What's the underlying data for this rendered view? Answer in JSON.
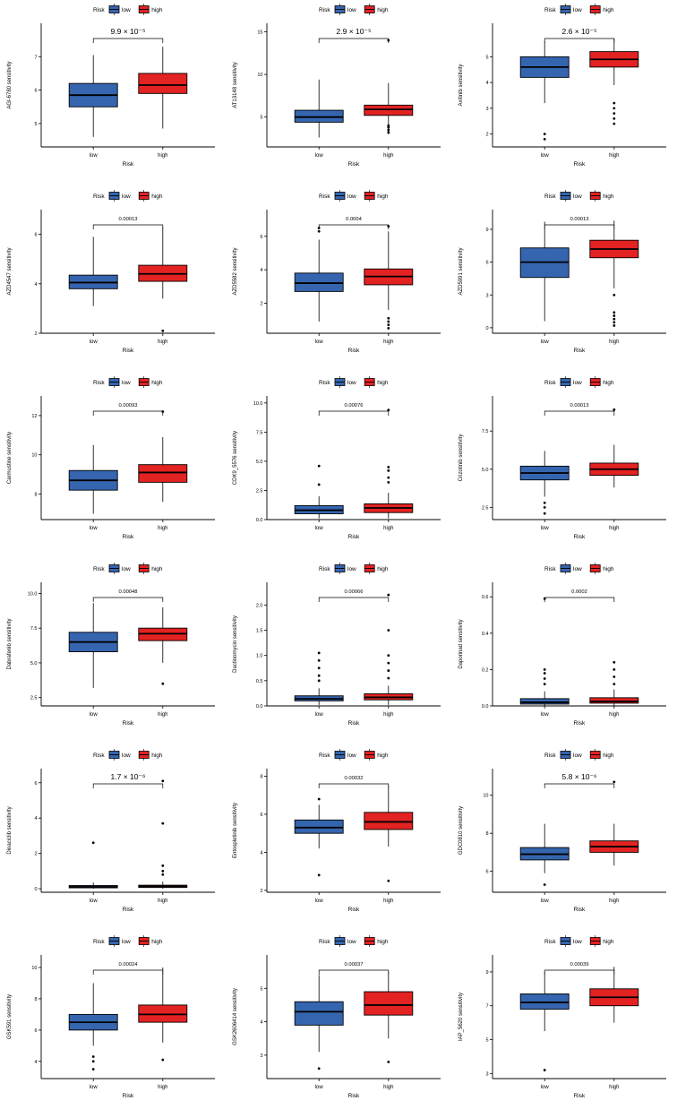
{
  "figure": {
    "type": "boxplot-grid",
    "rows": 6,
    "columns": 3
  },
  "legend": {
    "title": "Risk",
    "items": [
      {
        "label": "low",
        "color": "#3565AF"
      },
      {
        "label": "high",
        "color": "#E32222"
      }
    ]
  },
  "axes": {
    "x_label": "Risk",
    "x_categories": [
      "low",
      "high"
    ]
  },
  "chart_data": [
    {
      "type": "boxplot",
      "ylabel": "AGI-6780 sensitivity",
      "pvalue": "9.9 × 10⁻⁵",
      "pvalue_large": true,
      "ylim": [
        4.3,
        8.0
      ],
      "yticks": [
        5,
        6,
        7
      ],
      "ytick_labels": [
        "5",
        "6",
        "7"
      ],
      "groups": [
        {
          "name": "low",
          "lower": 4.6,
          "q1": 5.5,
          "median": 5.85,
          "q3": 6.2,
          "upper": 7.05,
          "outliers": []
        },
        {
          "name": "high",
          "lower": 4.85,
          "q1": 5.9,
          "median": 6.15,
          "q3": 6.5,
          "upper": 7.3,
          "outliers": []
        }
      ]
    },
    {
      "type": "boxplot",
      "ylabel": "AT13148 sensitivity",
      "pvalue": "2.9 × 10⁻⁵",
      "pvalue_large": true,
      "ylim": [
        1.5,
        16.0
      ],
      "yticks": [
        5,
        10,
        15
      ],
      "ytick_labels": [
        "5",
        "10",
        "15"
      ],
      "groups": [
        {
          "name": "low",
          "lower": 2.6,
          "q1": 4.4,
          "median": 5.0,
          "q3": 5.8,
          "upper": 9.4,
          "outliers": []
        },
        {
          "name": "high",
          "lower": 3.0,
          "q1": 5.2,
          "median": 5.9,
          "q3": 6.4,
          "upper": 9.0,
          "outliers": [
            3.2,
            3.5,
            3.8,
            4.0,
            14.0
          ]
        }
      ]
    },
    {
      "type": "boxplot",
      "ylabel": "Axitinib sensitivity",
      "pvalue": "2.6 × 10⁻⁵",
      "pvalue_large": true,
      "ylim": [
        1.5,
        6.3
      ],
      "yticks": [
        2,
        3,
        4,
        5
      ],
      "ytick_labels": [
        "2",
        "3",
        "4",
        "5"
      ],
      "groups": [
        {
          "name": "low",
          "lower": 3.2,
          "q1": 4.2,
          "median": 4.6,
          "q3": 5.0,
          "upper": 5.6,
          "outliers": [
            1.8,
            2.0
          ]
        },
        {
          "name": "high",
          "lower": 3.9,
          "q1": 4.6,
          "median": 4.9,
          "q3": 5.2,
          "upper": 5.7,
          "outliers": [
            2.4,
            2.6,
            2.8,
            3.0,
            3.2
          ]
        }
      ]
    },
    {
      "type": "boxplot",
      "ylabel": "AZD4547 sensitivity",
      "pvalue": "0.00013",
      "pvalue_large": false,
      "ylim": [
        2.0,
        7.0
      ],
      "yticks": [
        2,
        4,
        6
      ],
      "ytick_labels": [
        "2",
        "4",
        "6"
      ],
      "groups": [
        {
          "name": "low",
          "lower": 3.1,
          "q1": 3.8,
          "median": 4.05,
          "q3": 4.35,
          "upper": 5.9,
          "outliers": []
        },
        {
          "name": "high",
          "lower": 3.4,
          "q1": 4.1,
          "median": 4.4,
          "q3": 4.75,
          "upper": 6.3,
          "outliers": [
            2.1
          ]
        }
      ]
    },
    {
      "type": "boxplot",
      "ylabel": "AZD5582 sensitivity",
      "pvalue": "0.0004",
      "pvalue_large": false,
      "ylim": [
        0.2,
        7.6
      ],
      "yticks": [
        2,
        4,
        6
      ],
      "ytick_labels": [
        "2",
        "4",
        "6"
      ],
      "groups": [
        {
          "name": "low",
          "lower": 0.9,
          "q1": 2.7,
          "median": 3.2,
          "q3": 3.8,
          "upper": 5.8,
          "outliers": [
            6.3,
            6.5
          ]
        },
        {
          "name": "high",
          "lower": 1.6,
          "q1": 3.1,
          "median": 3.6,
          "q3": 4.05,
          "upper": 6.3,
          "outliers": [
            0.5,
            0.7,
            0.9,
            1.1,
            6.6
          ]
        }
      ]
    },
    {
      "type": "boxplot",
      "ylabel": "AZD5991 sensitivity",
      "pvalue": "0.00013",
      "pvalue_large": false,
      "ylim": [
        -0.5,
        10.8
      ],
      "yticks": [
        0,
        3,
        6,
        9
      ],
      "ytick_labels": [
        "0",
        "3",
        "6",
        "9"
      ],
      "groups": [
        {
          "name": "low",
          "lower": 0.6,
          "q1": 4.6,
          "median": 6.0,
          "q3": 7.3,
          "upper": 9.7,
          "outliers": []
        },
        {
          "name": "high",
          "lower": 3.6,
          "q1": 6.4,
          "median": 7.2,
          "q3": 8.0,
          "upper": 9.8,
          "outliers": [
            0.2,
            0.5,
            0.8,
            1.1,
            1.4,
            3.0
          ]
        }
      ]
    },
    {
      "type": "boxplot",
      "ylabel": "Carmustine sensitivity",
      "pvalue": "0.00093",
      "pvalue_large": false,
      "ylim": [
        6.7,
        13.0
      ],
      "yticks": [
        8,
        10,
        12
      ],
      "ytick_labels": [
        "8",
        "10",
        "12"
      ],
      "groups": [
        {
          "name": "low",
          "lower": 7.0,
          "q1": 8.2,
          "median": 8.7,
          "q3": 9.2,
          "upper": 10.5,
          "outliers": []
        },
        {
          "name": "high",
          "lower": 7.6,
          "q1": 8.6,
          "median": 9.1,
          "q3": 9.5,
          "upper": 10.9,
          "outliers": [
            12.2
          ]
        }
      ]
    },
    {
      "type": "boxplot",
      "ylabel": "CDK9_5576 sensitivity",
      "pvalue": "0.00076",
      "pvalue_large": false,
      "ylim": [
        0.0,
        10.6
      ],
      "yticks": [
        0.0,
        2.5,
        5.0,
        7.5,
        10.0
      ],
      "ytick_labels": [
        "0.0",
        "2.5",
        "5.0",
        "7.5",
        "10.0"
      ],
      "groups": [
        {
          "name": "low",
          "lower": 0.1,
          "q1": 0.5,
          "median": 0.8,
          "q3": 1.2,
          "upper": 2.0,
          "outliers": [
            3.0,
            4.6
          ]
        },
        {
          "name": "high",
          "lower": 0.1,
          "q1": 0.6,
          "median": 1.0,
          "q3": 1.35,
          "upper": 2.3,
          "outliers": [
            3.2,
            3.6,
            4.2,
            4.5,
            9.4
          ]
        }
      ]
    },
    {
      "type": "boxplot",
      "ylabel": "Crizotinib sensitivity",
      "pvalue": "0.00013",
      "pvalue_large": false,
      "ylim": [
        1.7,
        9.8
      ],
      "yticks": [
        2.5,
        5.0,
        7.5
      ],
      "ytick_labels": [
        "2.5",
        "5.0",
        "7.5"
      ],
      "groups": [
        {
          "name": "low",
          "lower": 3.2,
          "q1": 4.3,
          "median": 4.75,
          "q3": 5.2,
          "upper": 6.2,
          "outliers": [
            2.1,
            2.5,
            2.8
          ]
        },
        {
          "name": "high",
          "lower": 3.8,
          "q1": 4.6,
          "median": 5.0,
          "q3": 5.4,
          "upper": 6.6,
          "outliers": [
            8.9
          ]
        }
      ]
    },
    {
      "type": "boxplot",
      "ylabel": "Dabrafenib sensitivity",
      "pvalue": "0.00048",
      "pvalue_large": false,
      "ylim": [
        1.9,
        10.8
      ],
      "yticks": [
        2.5,
        5.0,
        7.5,
        10.0
      ],
      "ytick_labels": [
        "2.5",
        "5.0",
        "7.5",
        "10.0"
      ],
      "groups": [
        {
          "name": "low",
          "lower": 3.2,
          "q1": 5.8,
          "median": 6.5,
          "q3": 7.2,
          "upper": 9.3,
          "outliers": []
        },
        {
          "name": "high",
          "lower": 5.0,
          "q1": 6.6,
          "median": 7.1,
          "q3": 7.5,
          "upper": 9.0,
          "outliers": [
            3.5
          ]
        }
      ]
    },
    {
      "type": "boxplot",
      "ylabel": "Dactinomycin sensitivity",
      "pvalue": "0.00066",
      "pvalue_large": false,
      "ylim": [
        0.0,
        2.45
      ],
      "yticks": [
        0.0,
        0.5,
        1.0,
        1.5,
        2.0
      ],
      "ytick_labels": [
        "0.0",
        "0.5",
        "1.0",
        "1.5",
        "2.0"
      ],
      "groups": [
        {
          "name": "low",
          "lower": 0.02,
          "q1": 0.1,
          "median": 0.14,
          "q3": 0.2,
          "upper": 0.35,
          "outliers": [
            0.5,
            0.6,
            0.75,
            0.9,
            1.05
          ]
        },
        {
          "name": "high",
          "lower": 0.02,
          "q1": 0.12,
          "median": 0.17,
          "q3": 0.24,
          "upper": 0.4,
          "outliers": [
            0.55,
            0.7,
            0.85,
            1.0,
            1.5,
            2.2
          ]
        }
      ]
    },
    {
      "type": "boxplot",
      "ylabel": "Daporinad sensitivity",
      "pvalue": "0.0002",
      "pvalue_large": false,
      "ylim": [
        0.0,
        0.68
      ],
      "yticks": [
        0.0,
        0.2,
        0.4,
        0.6
      ],
      "ytick_labels": [
        "0.0",
        "0.2",
        "0.4",
        "0.6"
      ],
      "groups": [
        {
          "name": "low",
          "lower": 0.0,
          "q1": 0.01,
          "median": 0.02,
          "q3": 0.04,
          "upper": 0.08,
          "outliers": [
            0.12,
            0.15,
            0.18,
            0.2,
            0.59
          ]
        },
        {
          "name": "high",
          "lower": 0.0,
          "q1": 0.015,
          "median": 0.025,
          "q3": 0.045,
          "upper": 0.09,
          "outliers": [
            0.12,
            0.16,
            0.2,
            0.24
          ]
        }
      ]
    },
    {
      "type": "boxplot",
      "ylabel": "Dinaciclib sensitivity",
      "pvalue": "1.7 × 10⁻⁶",
      "pvalue_large": true,
      "ylim": [
        -0.2,
        6.8
      ],
      "yticks": [
        0,
        2,
        4,
        6
      ],
      "ytick_labels": [
        "0",
        "2",
        "4",
        "6"
      ],
      "groups": [
        {
          "name": "low",
          "lower": 0.0,
          "q1": 0.05,
          "median": 0.1,
          "q3": 0.18,
          "upper": 0.35,
          "outliers": [
            2.6
          ]
        },
        {
          "name": "high",
          "lower": 0.0,
          "q1": 0.07,
          "median": 0.13,
          "q3": 0.2,
          "upper": 0.4,
          "outliers": [
            0.8,
            1.0,
            1.3,
            3.7,
            6.1
          ]
        }
      ]
    },
    {
      "type": "boxplot",
      "ylabel": "Entospletinib sensitivity",
      "pvalue": "0.00032",
      "pvalue_large": false,
      "ylim": [
        1.9,
        8.4
      ],
      "yticks": [
        2,
        4,
        6,
        8
      ],
      "ytick_labels": [
        "2",
        "4",
        "6",
        "8"
      ],
      "groups": [
        {
          "name": "low",
          "lower": 4.2,
          "q1": 5.0,
          "median": 5.3,
          "q3": 5.7,
          "upper": 6.5,
          "outliers": [
            2.8,
            6.8
          ]
        },
        {
          "name": "high",
          "lower": 4.3,
          "q1": 5.2,
          "median": 5.6,
          "q3": 6.1,
          "upper": 7.5,
          "outliers": [
            2.5
          ]
        }
      ]
    },
    {
      "type": "boxplot",
      "ylabel": "GDC0810 sensitivity",
      "pvalue": "5.8 × 10⁻⁶",
      "pvalue_large": true,
      "ylim": [
        4.9,
        11.4
      ],
      "yticks": [
        6,
        8,
        10
      ],
      "ytick_labels": [
        "6",
        "8",
        "10"
      ],
      "groups": [
        {
          "name": "low",
          "lower": 5.9,
          "q1": 6.6,
          "median": 6.9,
          "q3": 7.25,
          "upper": 8.5,
          "outliers": [
            5.3
          ]
        },
        {
          "name": "high",
          "lower": 6.3,
          "q1": 7.0,
          "median": 7.3,
          "q3": 7.6,
          "upper": 8.5,
          "outliers": [
            10.7
          ]
        }
      ]
    },
    {
      "type": "boxplot",
      "ylabel": "GSK591 sensitivity",
      "pvalue": "0.00024",
      "pvalue_large": false,
      "ylim": [
        2.9,
        10.8
      ],
      "yticks": [
        4,
        6,
        8,
        10
      ],
      "ytick_labels": [
        "4",
        "6",
        "8",
        "10"
      ],
      "groups": [
        {
          "name": "low",
          "lower": 5.0,
          "q1": 6.0,
          "median": 6.5,
          "q3": 7.0,
          "upper": 9.0,
          "outliers": [
            3.5,
            4.0,
            4.3
          ]
        },
        {
          "name": "high",
          "lower": 5.2,
          "q1": 6.5,
          "median": 7.0,
          "q3": 7.6,
          "upper": 10.0,
          "outliers": [
            4.1
          ]
        }
      ]
    },
    {
      "type": "boxplot",
      "ylabel": "GSK2606414 sensitivity",
      "pvalue": "0.00037",
      "pvalue_large": false,
      "ylim": [
        2.3,
        6.0
      ],
      "yticks": [
        3,
        4,
        5
      ],
      "ytick_labels": [
        "3",
        "4",
        "5"
      ],
      "groups": [
        {
          "name": "low",
          "lower": 3.1,
          "q1": 3.9,
          "median": 4.3,
          "q3": 4.6,
          "upper": 5.4,
          "outliers": [
            2.6
          ]
        },
        {
          "name": "high",
          "lower": 3.5,
          "q1": 4.2,
          "median": 4.5,
          "q3": 4.9,
          "upper": 5.5,
          "outliers": [
            2.8
          ]
        }
      ]
    },
    {
      "type": "boxplot",
      "ylabel": "IAP_5620 sensitivity",
      "pvalue": "0.00039",
      "pvalue_large": false,
      "ylim": [
        2.7,
        10.0
      ],
      "yticks": [
        3,
        5,
        7,
        9
      ],
      "ytick_labels": [
        "3",
        "5",
        "7",
        "9"
      ],
      "groups": [
        {
          "name": "low",
          "lower": 5.5,
          "q1": 6.8,
          "median": 7.2,
          "q3": 7.7,
          "upper": 9.0,
          "outliers": [
            3.2
          ]
        },
        {
          "name": "high",
          "lower": 6.0,
          "q1": 7.0,
          "median": 7.5,
          "q3": 8.0,
          "upper": 9.3,
          "outliers": []
        }
      ]
    }
  ]
}
